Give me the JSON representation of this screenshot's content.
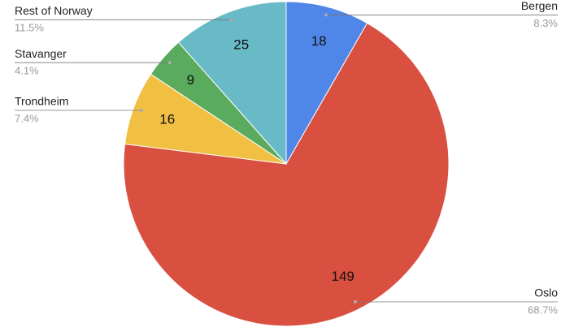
{
  "chart_data": {
    "type": "pie",
    "categories": [
      "Bergen",
      "Oslo",
      "Trondheim",
      "Stavanger",
      "Rest of Norway"
    ],
    "values": [
      18,
      149,
      16,
      9,
      25
    ],
    "percent_labels": [
      "8.3%",
      "68.7%",
      "7.4%",
      "4.1%",
      "11.5%"
    ],
    "colors": [
      "#4f86e8",
      "#d95040",
      "#f1bf42",
      "#5aab5e",
      "#67bac6"
    ]
  }
}
